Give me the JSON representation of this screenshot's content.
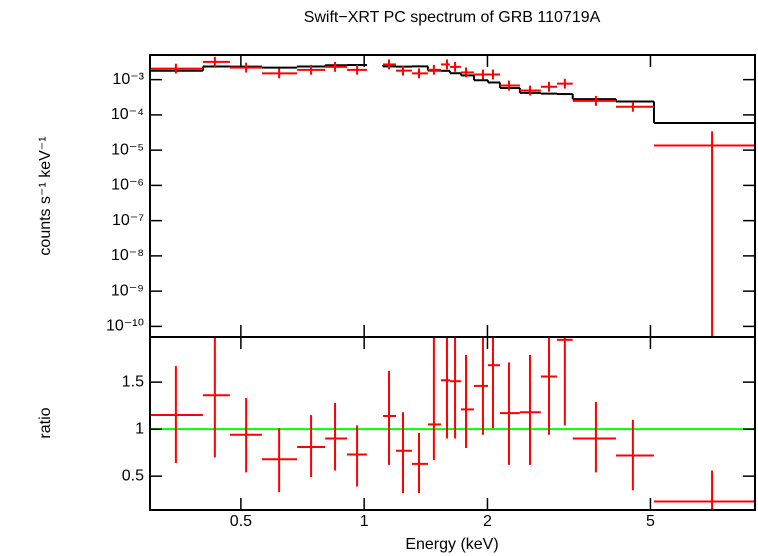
{
  "chart_data": [
    {
      "type": "errorbar",
      "title": "Swift−XRT PC spectrum of GRB 110719A",
      "ylabel": "counts s⁻¹ keV⁻¹",
      "yscale": "log",
      "ylim": [
        5e-11,
        0.005
      ],
      "yticks": [
        {
          "value": 0.001,
          "label": "10⁻³"
        },
        {
          "value": 0.0001,
          "label": "10⁻⁴"
        },
        {
          "value": 1e-05,
          "label": "10⁻⁵"
        },
        {
          "value": 1e-06,
          "label": "10⁻⁶"
        },
        {
          "value": 1e-07,
          "label": "10⁻⁷"
        },
        {
          "value": 1e-08,
          "label": "10⁻⁸"
        },
        {
          "value": 1e-09,
          "label": "10⁻⁹"
        },
        {
          "value": 1e-10,
          "label": "10⁻¹⁰"
        }
      ],
      "color": "#ff0000",
      "x": [
        0.347,
        0.432,
        0.515,
        0.62,
        0.742,
        0.849,
        0.961,
        1.15,
        1.244,
        1.361,
        1.48,
        1.593,
        1.667,
        1.773,
        1.95,
        2.063,
        2.257,
        2.54,
        2.827,
        3.09,
        3.68,
        4.53,
        7.07
      ],
      "xlo": [
        0.3,
        0.404,
        0.47,
        0.563,
        0.686,
        0.803,
        0.908,
        1.112,
        1.196,
        1.308,
        1.431,
        1.54,
        1.62,
        1.723,
        1.854,
        2.006,
        2.146,
        2.4,
        2.7,
        2.957,
        3.23,
        4.12,
        5.1
      ],
      "xhi": [
        0.404,
        0.47,
        0.563,
        0.686,
        0.803,
        0.908,
        1.016,
        1.196,
        1.308,
        1.431,
        1.54,
        1.62,
        1.723,
        1.854,
        2.006,
        2.146,
        2.4,
        2.7,
        2.957,
        3.23,
        4.12,
        5.1,
        9.0
      ],
      "values": [
        0.00205,
        0.0032,
        0.0022,
        0.0015,
        0.0019,
        0.0023,
        0.0019,
        0.0027,
        0.0018,
        0.0015,
        0.0019,
        0.0027,
        0.0023,
        0.0016,
        0.0014,
        0.0014,
        0.00068,
        0.00049,
        0.00063,
        0.00077,
        0.00025,
        0.00017,
        1.35e-05
      ],
      "ylow": [
        0.00149,
        0.00232,
        0.00159,
        0.00109,
        0.00138,
        0.00167,
        0.00138,
        0.00196,
        0.0013,
        0.00109,
        0.00138,
        0.00196,
        0.00167,
        0.00116,
        0.00101,
        0.00101,
        0.00049,
        0.000355,
        0.000457,
        0.000558,
        0.000181,
        0.000123,
        1e-11
      ],
      "yhigh": [
        0.00283,
        0.00442,
        0.00304,
        0.00207,
        0.00262,
        0.00317,
        0.00262,
        0.00373,
        0.00248,
        0.00207,
        0.00262,
        0.00373,
        0.00317,
        0.00221,
        0.00193,
        0.00193,
        0.00094,
        0.000676,
        0.000869,
        0.00106,
        0.000345,
        0.000235,
        3.4e-05
      ],
      "model_color": "#000000",
      "model_values": [
        0.00178,
        0.00235,
        0.00234,
        0.0022,
        0.00235,
        0.00256,
        0.0026,
        0.00237,
        0.00234,
        0.00238,
        0.00181,
        0.00178,
        0.00152,
        0.00132,
        0.00096,
        0.00083,
        0.00058,
        0.00042,
        0.0004,
        0.00039,
        0.00028,
        0.00024,
        5.9e-05
      ]
    },
    {
      "type": "ratio",
      "ylabel": "ratio",
      "xlabel": "Energy (keV)",
      "xscale": "log",
      "xlim": [
        0.3,
        9.0
      ],
      "xticks": [
        0.5,
        1,
        2,
        5
      ],
      "ylim": [
        0.14,
        1.98
      ],
      "yticks": [
        0.5,
        1,
        1.5
      ],
      "color": "#ff0000",
      "values": [
        1.15,
        1.36,
        0.94,
        0.68,
        0.81,
        0.9,
        0.73,
        1.14,
        0.77,
        0.63,
        1.05,
        1.52,
        1.51,
        1.21,
        1.46,
        1.68,
        1.17,
        1.18,
        1.56,
        1.95,
        0.9,
        0.72,
        0.23
      ],
      "ylow": [
        0.64,
        0.7,
        0.54,
        0.33,
        0.49,
        0.56,
        0.39,
        0.62,
        0.32,
        0.32,
        0.67,
        0.9,
        0.9,
        0.8,
        0.94,
        1.01,
        0.62,
        0.62,
        0.94,
        1.04,
        0.54,
        0.35,
        0.1
      ],
      "yhigh": [
        1.67,
        1.97,
        1.33,
        1.01,
        1.15,
        1.28,
        1.04,
        1.62,
        1.18,
        0.96,
        1.97,
        2.1,
        2.1,
        1.79,
        2.1,
        2.1,
        1.71,
        1.79,
        2.1,
        2.1,
        1.29,
        1.1,
        0.56
      ],
      "reference": 1,
      "reference_color": "#00ff00"
    }
  ]
}
